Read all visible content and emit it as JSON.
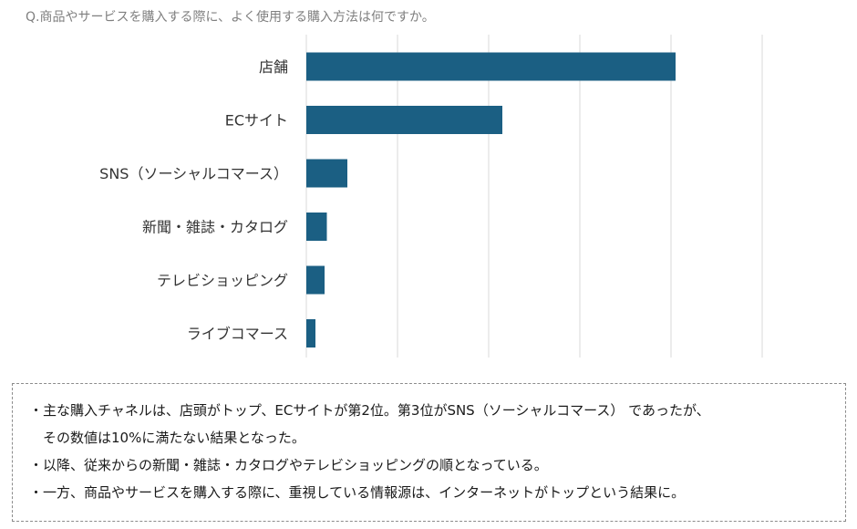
{
  "question": "Q.商品やサービスを購入する際に、よく使用する購入方法は何ですか。",
  "chart_data": {
    "type": "bar",
    "orientation": "horizontal",
    "categories": [
      "店舗",
      "ECサイト",
      "SNS（ソーシャルコマース）",
      "新聞・雑誌・カタログ",
      "テレビショッピング",
      "ライブコマース"
    ],
    "values": [
      81,
      43,
      9,
      4.5,
      4,
      2
    ],
    "xlim": [
      0,
      100
    ],
    "grid": true,
    "bar_color": "#1b5f83"
  },
  "notes": [
    "・主な購入チャネルは、店頭がトップ、ECサイトが第2位。第3位がSNS（ソーシャルコマース） であったが、",
    "　その数値は10%に満たない結果となった。",
    "・以降、従来からの新聞・雑誌・カタログやテレビショッピングの順となっている。",
    "・一方、商品やサービスを購入する際に、重視している情報源は、インターネットがトップという結果に。"
  ]
}
